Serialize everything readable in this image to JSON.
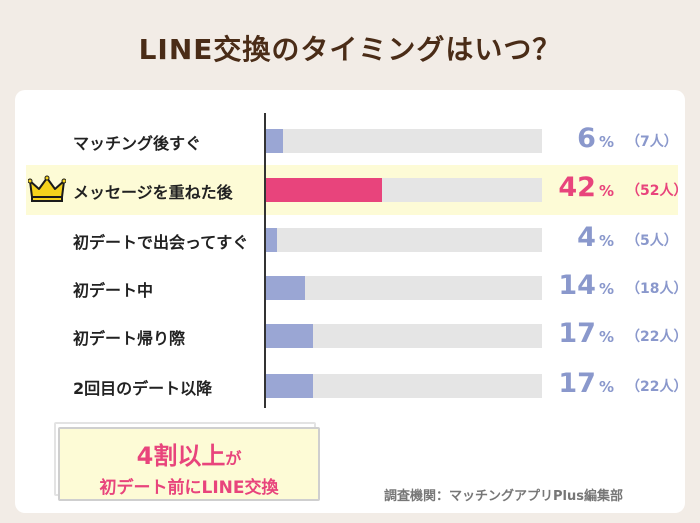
{
  "title": "LINE交換のタイミングはいつ？",
  "chart_data": {
    "type": "bar",
    "orientation": "horizontal",
    "title": "LINE交換のタイミングはいつ？",
    "categories": [
      "マッチング後すぐ",
      "メッセージを重ねた後",
      "初デートで出会ってすぐ",
      "初デート中",
      "初デート帰り際",
      "2回目のデート以降"
    ],
    "values": [
      6,
      42,
      4,
      14,
      17,
      17
    ],
    "value_labels": [
      "6",
      "42",
      "4",
      "14",
      "17",
      "17"
    ],
    "percent_sign": "%",
    "counts": [
      "（7人）",
      "（52人）",
      "（5人）",
      "（18人）",
      "（22人）",
      "（22人）"
    ],
    "xlim": [
      0,
      100
    ],
    "highlight_index": 1,
    "colors": {
      "bar": "#9aa6d4",
      "bar_highlight": "#e8447c",
      "track": "#e5e5e5",
      "value_text": "#8a98cc",
      "value_text_highlight": "#e8447c",
      "highlight_background": "#fdfbd6"
    }
  },
  "callout": {
    "line1_big": "4割以上",
    "line1_small": "が",
    "line2": "初デート前にLINE交換"
  },
  "crown_icon": "crown-icon",
  "source": "調査機関：マッチングアプリPlus編集部"
}
